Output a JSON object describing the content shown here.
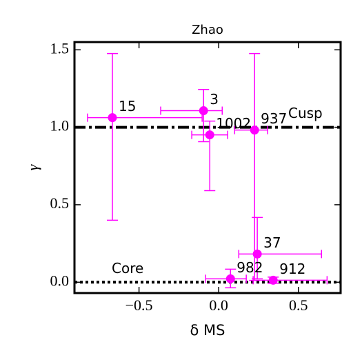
{
  "chart_data": {
    "type": "scatter",
    "title": "Zhao",
    "xlabel": "δ MS",
    "ylabel": "γ",
    "color": "#ff00ff",
    "labels": [
      "15",
      "3",
      "1002",
      "937",
      "37",
      "982",
      "912"
    ],
    "x": [
      -0.667,
      -0.095,
      -0.056,
      0.225,
      0.242,
      0.074,
      0.342
    ],
    "values": [
      1.062,
      1.107,
      0.951,
      0.982,
      0.182,
      0.022,
      0.013
    ],
    "xerr": [
      [
        0.156,
        0.563
      ],
      [
        0.269,
        0.117
      ],
      [
        0.113,
        0.112
      ],
      [
        0.125,
        0.082
      ],
      [
        0.116,
        0.403
      ],
      [
        0.156,
        0.099
      ],
      [
        0.126,
        0.338
      ]
    ],
    "yerr": [
      [
        0.662,
        0.414
      ],
      [
        0.2,
        0.137
      ],
      [
        0.36,
        0.089
      ],
      [
        0.97,
        0.494
      ],
      [
        0.16,
        0.236
      ],
      [
        0.058,
        0.062
      ],
      [
        0.02,
        0.02
      ]
    ],
    "hlines": [
      {
        "y": 1,
        "label": "Cusp",
        "style": "dashdot"
      },
      {
        "y": 0,
        "label": "Core",
        "style": "dotted"
      }
    ],
    "xlim": [
      -0.905,
      0.765
    ],
    "ylim": [
      -0.07,
      1.55
    ],
    "xticks": [
      {
        "value": -0.5,
        "label": "−0.5"
      },
      {
        "value": 0,
        "label": "0.0"
      },
      0.5
    ],
    "yticks": [
      {
        "value": 0,
        "label": "0.0"
      },
      0.5,
      {
        "value": 1,
        "label": "1.0"
      },
      1.5
    ]
  }
}
